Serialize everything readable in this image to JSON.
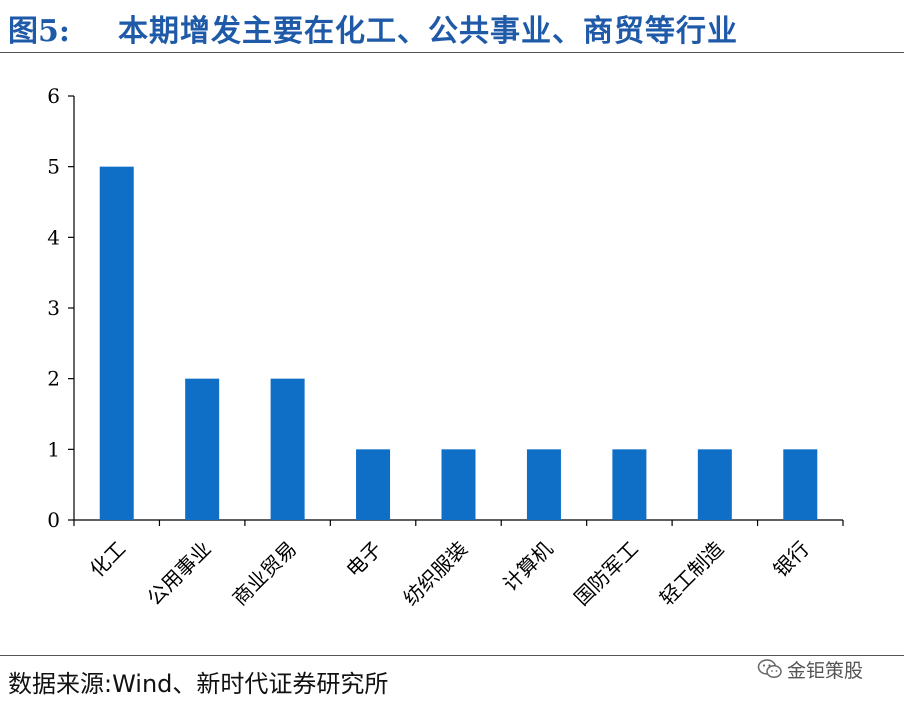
{
  "header": {
    "figure_label": "图5:",
    "title": "本期增发主要在化工、公共事业、商贸等行业"
  },
  "footer": {
    "source": "数据来源:Wind、新时代证券研究所",
    "watermark": "金钜策股"
  },
  "colors": {
    "title": "#1f5aa8",
    "bar": "#0f6fc6",
    "axis": "#000000"
  },
  "chart_data": {
    "type": "bar",
    "categories": [
      "化工",
      "公用事业",
      "商业贸易",
      "电子",
      "纺织服装",
      "计算机",
      "国防军工",
      "轻工制造",
      "银行"
    ],
    "values": [
      5,
      2,
      2,
      1,
      1,
      1,
      1,
      1,
      1
    ],
    "yticks": [
      0,
      1,
      2,
      3,
      4,
      5,
      6
    ],
    "ylim": [
      0,
      6
    ],
    "title": "",
    "xlabel": "",
    "ylabel": "",
    "grid": false,
    "legend": "none"
  }
}
